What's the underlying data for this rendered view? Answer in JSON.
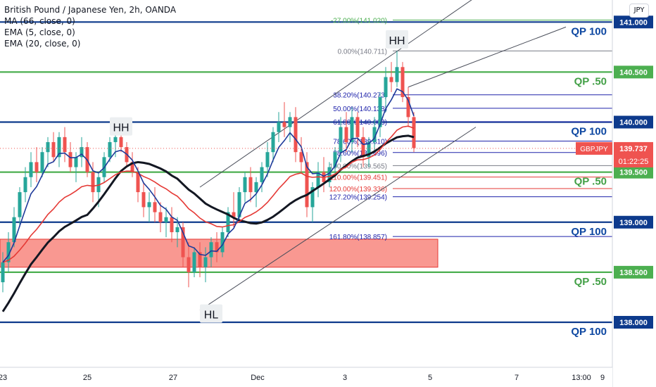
{
  "legend": {
    "symbol": "British Pound / Japanese Yen, 2h, OANDA",
    "ind1": "MA (66, close, 0)",
    "ind2": "EMA (5, close, 0)",
    "ind3": "EMA (20, close, 0)"
  },
  "currency_badge": "JPY",
  "chart_data": {
    "type": "candlestick",
    "symbol": "GBPJPY",
    "timeframe": "2h",
    "price_axis": {
      "ylim": [
        137.55,
        141.22
      ],
      "ticks": [
        "140.500",
        "140.000",
        "139.500",
        "139.000",
        "138.500",
        "138.000"
      ],
      "top_partial": "141.000",
      "last_price": "139.737",
      "countdown": "01:22:25",
      "ticker_badge": "GBPJPY"
    },
    "time_axis": {
      "labels": [
        "23",
        "25",
        "27",
        "Dec",
        "3",
        "5",
        "7",
        "9",
        "13:00"
      ]
    },
    "levels": [
      {
        "price": 141.0,
        "label": "QP 100",
        "kind": "blue"
      },
      {
        "price": 140.5,
        "label": "QP .50",
        "kind": "green"
      },
      {
        "price": 140.0,
        "label": "QP 100",
        "kind": "blue"
      },
      {
        "price": 139.5,
        "label": "QP .50",
        "kind": "green"
      },
      {
        "price": 139.0,
        "label": "QP 100",
        "kind": "blue"
      },
      {
        "price": 138.5,
        "label": "QP .50",
        "kind": "green"
      },
      {
        "price": 138.0,
        "label": "QP 100",
        "kind": "blue"
      }
    ],
    "fibonacci": [
      {
        "price": 141.02,
        "label": "-27.00%(141.020)",
        "color": "#4caf50"
      },
      {
        "price": 140.711,
        "label": "0.00%(140.711)",
        "color": "#787b86"
      },
      {
        "price": 140.273,
        "label": "38.20%(140.273)",
        "color": "#1e22aa"
      },
      {
        "price": 140.138,
        "label": "50.00%(140.138)",
        "color": "#1e22aa"
      },
      {
        "price": 140.003,
        "label": "61.80%(140.003)",
        "color": "#1e22aa"
      },
      {
        "price": 139.81,
        "label": "78.60%(139.810)",
        "color": "#1e22aa"
      },
      {
        "price": 139.696,
        "label": "88.60%(139.696)",
        "color": "#1e22aa"
      },
      {
        "price": 139.565,
        "label": "100.00%(139.565)",
        "color": "#787b86"
      },
      {
        "price": 139.451,
        "label": "110.00%(139.451)",
        "color": "#e53935"
      },
      {
        "price": 139.336,
        "label": "120.00%(139.336)",
        "color": "#e53935"
      },
      {
        "price": 139.254,
        "label": "127.20%(139.254)",
        "color": "#1e22aa"
      },
      {
        "price": 138.857,
        "label": "161.80%(138.857)",
        "color": "#1e22aa"
      }
    ],
    "zone": {
      "from": 138.55,
      "to": 138.83
    },
    "annotations": [
      {
        "text": "HH",
        "price": 139.95,
        "bar": 21
      },
      {
        "text": "HH",
        "price": 140.82,
        "bar": 70
      },
      {
        "text": "HL",
        "price": 138.08,
        "bar": 37
      }
    ],
    "ohlc_bars": [
      [
        138.4,
        138.7,
        138.3,
        138.6
      ],
      [
        138.6,
        138.9,
        138.5,
        138.8
      ],
      [
        138.8,
        139.15,
        138.75,
        139.05
      ],
      [
        139.05,
        139.35,
        138.95,
        139.3
      ],
      [
        139.3,
        139.55,
        139.2,
        139.45
      ],
      [
        139.45,
        139.7,
        139.35,
        139.6
      ],
      [
        139.6,
        139.75,
        139.4,
        139.5
      ],
      [
        139.5,
        139.75,
        139.45,
        139.7
      ],
      [
        139.7,
        139.85,
        139.55,
        139.8
      ],
      [
        139.8,
        139.9,
        139.6,
        139.65
      ],
      [
        139.65,
        139.9,
        139.55,
        139.85
      ],
      [
        139.85,
        139.95,
        139.6,
        139.7
      ],
      [
        139.7,
        139.8,
        139.5,
        139.55
      ],
      [
        139.55,
        139.7,
        139.4,
        139.65
      ],
      [
        139.65,
        139.85,
        139.55,
        139.75
      ],
      [
        139.75,
        139.8,
        139.45,
        139.5
      ],
      [
        139.5,
        139.6,
        139.2,
        139.3
      ],
      [
        139.3,
        139.5,
        139.15,
        139.45
      ],
      [
        139.45,
        139.7,
        139.4,
        139.65
      ],
      [
        139.65,
        139.85,
        139.6,
        139.8
      ],
      [
        139.8,
        139.9,
        139.65,
        139.85
      ],
      [
        139.85,
        139.95,
        139.7,
        139.75
      ],
      [
        139.75,
        139.8,
        139.55,
        139.6
      ],
      [
        139.6,
        139.7,
        139.45,
        139.5
      ],
      [
        139.5,
        139.55,
        139.2,
        139.3
      ],
      [
        139.3,
        139.4,
        139.05,
        139.15
      ],
      [
        139.15,
        139.3,
        139.0,
        139.2
      ],
      [
        139.2,
        139.35,
        139.0,
        139.1
      ],
      [
        139.1,
        139.2,
        138.9,
        139.0
      ],
      [
        139.0,
        139.15,
        138.85,
        139.05
      ],
      [
        139.05,
        139.15,
        138.8,
        138.9
      ],
      [
        138.9,
        139.05,
        138.75,
        138.95
      ],
      [
        138.95,
        139.0,
        138.55,
        138.65
      ],
      [
        138.65,
        138.8,
        138.35,
        138.5
      ],
      [
        138.5,
        138.75,
        138.45,
        138.7
      ],
      [
        138.7,
        138.8,
        138.45,
        138.55
      ],
      [
        138.55,
        138.75,
        138.4,
        138.65
      ],
      [
        138.65,
        138.85,
        138.55,
        138.8
      ],
      [
        138.8,
        138.9,
        138.6,
        138.7
      ],
      [
        138.7,
        138.95,
        138.65,
        138.9
      ],
      [
        138.9,
        139.15,
        138.85,
        139.1
      ],
      [
        139.1,
        139.3,
        138.95,
        139.05
      ],
      [
        139.05,
        139.35,
        139.0,
        139.3
      ],
      [
        139.3,
        139.5,
        139.2,
        139.45
      ],
      [
        139.45,
        139.55,
        139.2,
        139.3
      ],
      [
        139.3,
        139.45,
        139.15,
        139.4
      ],
      [
        139.4,
        139.6,
        139.3,
        139.55
      ],
      [
        139.55,
        139.8,
        139.45,
        139.7
      ],
      [
        139.7,
        139.95,
        139.6,
        139.9
      ],
      [
        139.9,
        140.1,
        139.8,
        140.0
      ],
      [
        140.0,
        140.2,
        139.85,
        139.95
      ],
      [
        139.95,
        140.1,
        139.8,
        140.05
      ],
      [
        140.05,
        140.15,
        139.6,
        139.7
      ],
      [
        139.7,
        139.85,
        139.5,
        139.6
      ],
      [
        139.6,
        139.7,
        139.05,
        139.15
      ],
      [
        139.15,
        139.4,
        139.0,
        139.35
      ],
      [
        139.35,
        139.6,
        139.25,
        139.5
      ],
      [
        139.5,
        139.65,
        139.3,
        139.4
      ],
      [
        139.4,
        139.6,
        139.35,
        139.55
      ],
      [
        139.55,
        139.75,
        139.45,
        139.7
      ],
      [
        139.7,
        140.05,
        139.6,
        139.95
      ],
      [
        139.95,
        140.1,
        139.7,
        139.8
      ],
      [
        139.8,
        140.15,
        139.7,
        140.05
      ],
      [
        140.05,
        140.1,
        139.75,
        139.85
      ],
      [
        139.85,
        139.95,
        139.55,
        139.65
      ],
      [
        139.65,
        139.85,
        139.55,
        139.8
      ],
      [
        139.8,
        140.05,
        139.7,
        139.95
      ],
      [
        139.95,
        140.3,
        139.85,
        140.25
      ],
      [
        140.25,
        140.55,
        140.1,
        140.45
      ],
      [
        140.45,
        140.6,
        140.3,
        140.4
      ],
      [
        140.4,
        140.71,
        140.35,
        140.55
      ],
      [
        140.55,
        140.6,
        140.2,
        140.25
      ],
      [
        140.25,
        140.35,
        139.95,
        140.05
      ],
      [
        140.05,
        140.1,
        139.7,
        139.74
      ]
    ]
  }
}
